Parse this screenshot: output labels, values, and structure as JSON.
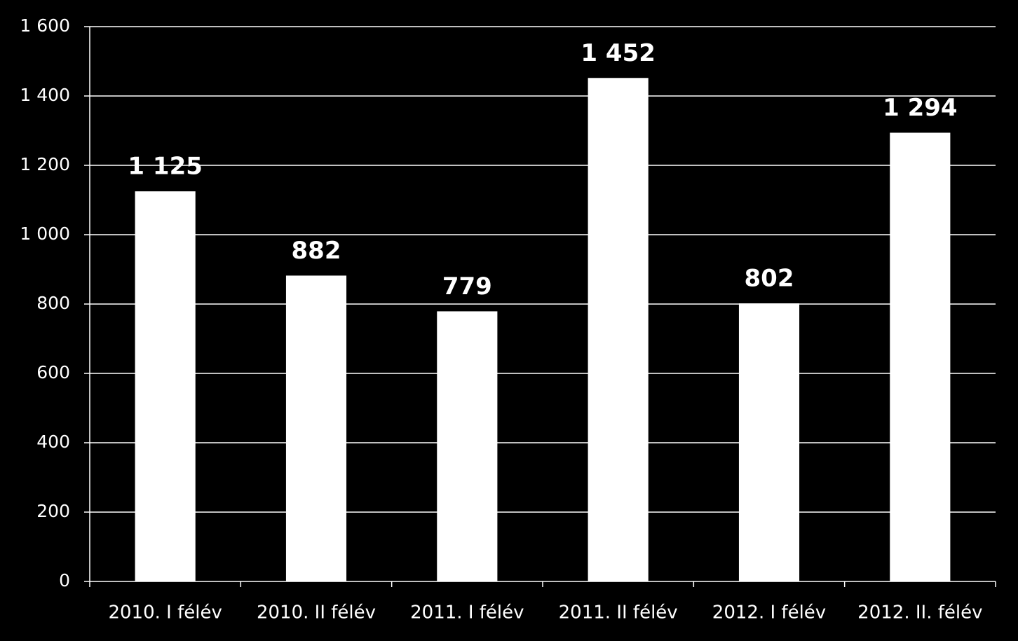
{
  "chart_data": {
    "type": "bar",
    "categories": [
      "2010. I félév",
      "2010. II félév",
      "2011. I félév",
      "2011. II félév",
      "2012. I félév",
      "2012. II. félév"
    ],
    "values": [
      1125,
      882,
      779,
      1452,
      802,
      1294
    ],
    "value_labels": [
      "1 125",
      "882",
      "779",
      "1 452",
      "802",
      "1 294"
    ],
    "color": "#ffffff",
    "ylim": [
      0,
      1600
    ],
    "yticks": [
      0,
      200,
      400,
      600,
      800,
      {
        "value": 1000,
        "label": "1 000"
      },
      {
        "value": 1200,
        "label": "1 200"
      },
      {
        "value": 1400,
        "label": "1 400"
      },
      {
        "value": 1600,
        "label": "1 600"
      }
    ],
    "grid": true
  }
}
